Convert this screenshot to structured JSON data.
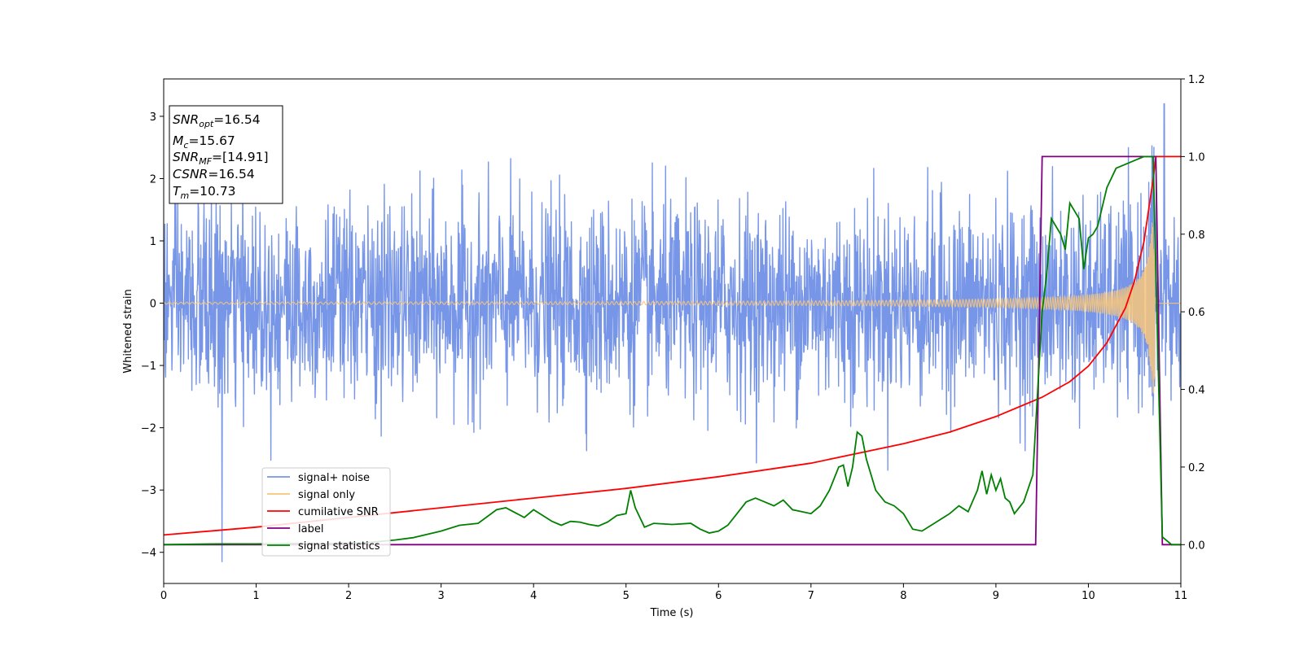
{
  "chart_data": {
    "type": "line",
    "title": "",
    "xlabel": "Time (s)",
    "ylabel": "Whitened strain",
    "xlim": [
      0,
      11
    ],
    "ylim": [
      -4.5,
      3.6
    ],
    "y2lim": [
      -0.1,
      1.2
    ],
    "grid": false,
    "legend_position": "lower-left",
    "x_ticks": [
      0,
      1,
      2,
      3,
      4,
      5,
      6,
      7,
      8,
      9,
      10,
      11
    ],
    "y_ticks": [
      3,
      2,
      1,
      0,
      -1,
      -2,
      -3,
      -4
    ],
    "y2_ticks": [
      "1.2",
      "1.0",
      "0.8",
      "0.6",
      "0.4",
      "0.2",
      "0.0"
    ],
    "y_tick_labels": [
      "3",
      "2",
      "1",
      "0",
      "−1",
      "−2",
      "−3",
      "−4"
    ],
    "x_tick_labels": [
      "0",
      "1",
      "2",
      "3",
      "4",
      "5",
      "6",
      "7",
      "8",
      "9",
      "10",
      "11"
    ],
    "colors": {
      "noise": "#7896e8",
      "signal": "#f7c67a",
      "cumulative": "#ff0000",
      "label": "#800080",
      "statistics": "#008000"
    },
    "series": [
      {
        "name": "signal+ noise",
        "axis": "left",
        "summary": "whitened noise, approx. ±1.5 typical, peaks near 3.2 and -4.2"
      },
      {
        "name": "signal only",
        "axis": "left",
        "summary": "chirp: amplitude rising from 0.02 to ~1.4 near 10.73 s, zero after"
      },
      {
        "name": "cumilative SNR",
        "axis": "right",
        "x": [
          0,
          1,
          2,
          3,
          4,
          5,
          6,
          7,
          8,
          8.5,
          9,
          9.5,
          9.8,
          10,
          10.2,
          10.4,
          10.5,
          10.6,
          10.7,
          10.73,
          11
        ],
        "values": [
          0.025,
          0.045,
          0.07,
          0.095,
          0.12,
          0.145,
          0.175,
          0.21,
          0.26,
          0.29,
          0.33,
          0.38,
          0.42,
          0.46,
          0.52,
          0.61,
          0.68,
          0.78,
          0.94,
          1.0,
          1.0
        ]
      },
      {
        "name": "label",
        "axis": "right",
        "x": [
          0,
          9.43,
          9.5,
          10.73,
          10.8,
          11
        ],
        "values": [
          0,
          0,
          1,
          1,
          0,
          0
        ]
      },
      {
        "name": "signal statistics",
        "axis": "right",
        "x": [
          0,
          0.3,
          0.6,
          1.0,
          1.4,
          1.8,
          2.2,
          2.5,
          2.7,
          3.0,
          3.2,
          3.4,
          3.6,
          3.7,
          3.9,
          4.0,
          4.1,
          4.2,
          4.3,
          4.4,
          4.5,
          4.6,
          4.7,
          4.8,
          4.9,
          5.0,
          5.05,
          5.1,
          5.2,
          5.3,
          5.5,
          5.7,
          5.8,
          5.9,
          6.0,
          6.1,
          6.2,
          6.3,
          6.4,
          6.5,
          6.6,
          6.7,
          6.8,
          6.9,
          7.0,
          7.1,
          7.2,
          7.3,
          7.35,
          7.4,
          7.45,
          7.5,
          7.55,
          7.6,
          7.7,
          7.8,
          7.9,
          8.0,
          8.1,
          8.2,
          8.3,
          8.5,
          8.6,
          8.7,
          8.8,
          8.85,
          8.9,
          8.95,
          9.0,
          9.05,
          9.1,
          9.15,
          9.2,
          9.3,
          9.4,
          9.5,
          9.55,
          9.6,
          9.7,
          9.75,
          9.8,
          9.85,
          9.9,
          9.95,
          10.0,
          10.05,
          10.1,
          10.2,
          10.3,
          10.4,
          10.5,
          10.6,
          10.65,
          10.7,
          10.8,
          10.9,
          11.0
        ],
        "values": [
          0,
          0.001,
          0.002,
          0.002,
          0.003,
          0.003,
          0.005,
          0.012,
          0.018,
          0.035,
          0.05,
          0.055,
          0.09,
          0.095,
          0.07,
          0.09,
          0.075,
          0.06,
          0.05,
          0.06,
          0.058,
          0.052,
          0.048,
          0.058,
          0.075,
          0.08,
          0.14,
          0.095,
          0.045,
          0.055,
          0.052,
          0.055,
          0.04,
          0.03,
          0.035,
          0.05,
          0.08,
          0.11,
          0.12,
          0.11,
          0.1,
          0.115,
          0.09,
          0.085,
          0.08,
          0.1,
          0.14,
          0.2,
          0.205,
          0.15,
          0.2,
          0.29,
          0.28,
          0.22,
          0.14,
          0.11,
          0.1,
          0.08,
          0.04,
          0.035,
          0.05,
          0.08,
          0.1,
          0.085,
          0.14,
          0.19,
          0.13,
          0.18,
          0.14,
          0.17,
          0.12,
          0.11,
          0.08,
          0.11,
          0.18,
          0.6,
          0.7,
          0.84,
          0.8,
          0.76,
          0.88,
          0.86,
          0.84,
          0.71,
          0.79,
          0.8,
          0.82,
          0.92,
          0.97,
          0.98,
          0.99,
          1.0,
          1.0,
          1.0,
          0.02,
          0.0,
          0.0
        ]
      }
    ]
  },
  "legend": {
    "items": [
      "signal+ noise",
      "signal only",
      "cumilative SNR",
      "label",
      "signal statistics"
    ]
  },
  "info_box": {
    "snr_opt_sym": "SNR",
    "snr_opt_sub": "opt",
    "snr_opt_val": "=16.54",
    "mc_sym": "M",
    "mc_sub": "c",
    "mc_val": "=15.67",
    "snr_mf_sym": "SNR",
    "snr_mf_sub": "MF",
    "snr_mf_val": "=[14.91]",
    "csnr_sym": "CSNR",
    "csnr_val": "=16.54",
    "tm_sym": "T",
    "tm_sub": "m",
    "tm_val": "=10.73"
  }
}
